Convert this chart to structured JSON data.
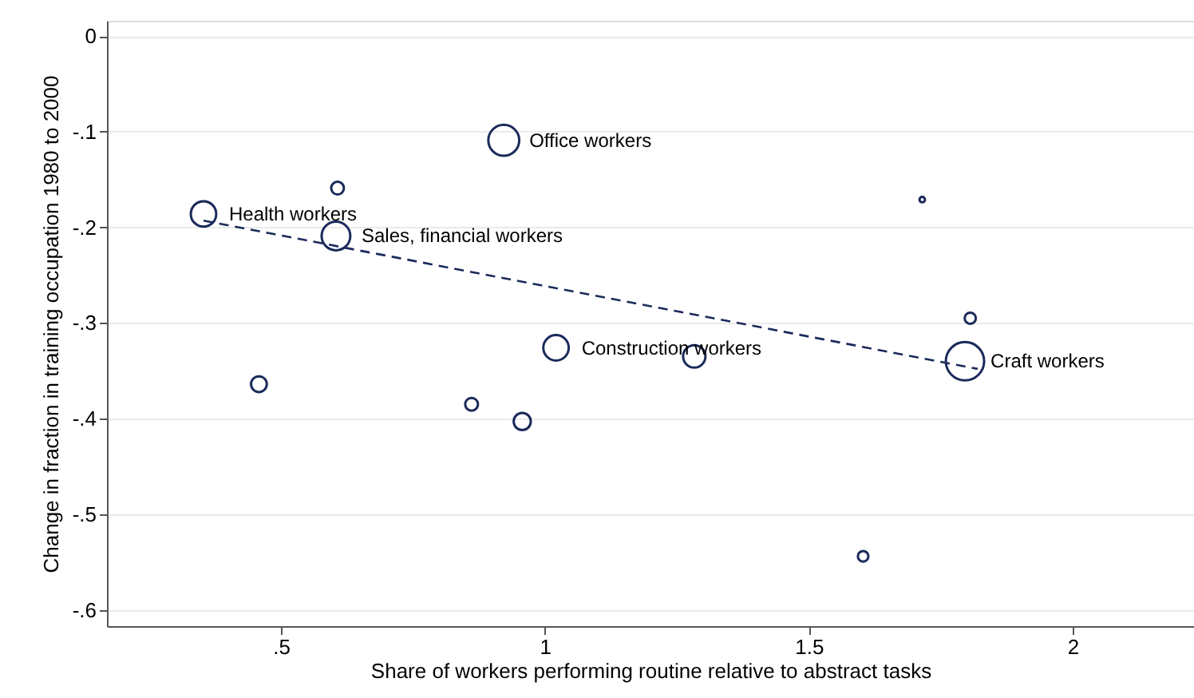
{
  "chart_data": {
    "type": "bubble",
    "xlabel": "Share of workers performing routine relative to abstract tasks",
    "ylabel": "Change in fraction in training occupation 1980 to 2000",
    "xlim": [
      0.17,
      2.23
    ],
    "xticks": [
      {
        "value": 0.5,
        "label": ".5"
      },
      {
        "value": 1,
        "label": "1"
      },
      {
        "value": 1.5,
        "label": "1.5"
      },
      {
        "value": 2,
        "label": "2"
      }
    ],
    "ylim": [
      -0.617,
      0.016
    ],
    "yticks": [
      {
        "value": 0,
        "label": "0"
      },
      {
        "value": -0.1,
        "label": "-.1"
      },
      {
        "value": -0.2,
        "label": "-.2"
      },
      {
        "value": -0.3,
        "label": "-.3"
      },
      {
        "value": -0.4,
        "label": "-.4"
      },
      {
        "value": -0.5,
        "label": "-.5"
      },
      {
        "value": -0.6,
        "label": "-.6"
      }
    ],
    "grid": "y",
    "series": [
      {
        "marker": "circle",
        "color": "#1a2a5a",
        "x": [
          0.353,
          0.607,
          0.604,
          0.922,
          0.458,
          0.861,
          0.957,
          1.021,
          1.283,
          1.715,
          1.806,
          1.796,
          1.603
        ],
        "values": [
          -0.186,
          -0.159,
          -0.209,
          -0.109,
          -0.364,
          -0.385,
          -0.403,
          -0.326,
          -0.335,
          -0.171,
          -0.295,
          -0.34,
          -0.544
        ],
        "sizes": [
          0.44,
          0.11,
          0.56,
          0.65,
          0.17,
          0.11,
          0.2,
          0.44,
          0.34,
          0.02,
          0.085,
          1,
          0.076
        ]
      },
      {
        "type": "line",
        "color": "#1a2a5a",
        "line_style": "dashed",
        "x": [
          0.353,
          1.82
        ],
        "values": [
          -0.193,
          -0.348
        ]
      }
    ],
    "annotations": [
      {
        "text": "Health workers",
        "x": 0.353,
        "y": -0.186
      },
      {
        "text": "Sales, financial workers",
        "x": 0.604,
        "y": -0.209
      },
      {
        "text": "Office workers",
        "x": 0.922,
        "y": -0.109
      },
      {
        "text": "Construction workers",
        "x": 1.021,
        "y": -0.326
      },
      {
        "text": "Craft workers",
        "x": 1.796,
        "y": -0.34
      }
    ]
  }
}
